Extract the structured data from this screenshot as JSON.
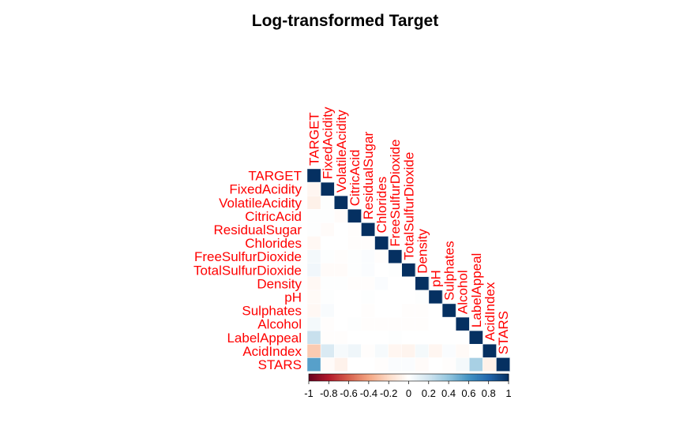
{
  "chart_data": {
    "type": "heatmap",
    "layout": "lower-triangular correlation matrix",
    "title": "Log-transformed Target",
    "variables": [
      "TARGET",
      "FixedAcidity",
      "VolatileAcidity",
      "CitricAcid",
      "ResidualSugar",
      "Chlorides",
      "FreeSulfurDioxide",
      "TotalSulfurDioxide",
      "Density",
      "pH",
      "Sulphates",
      "Alcohol",
      "LabelAppeal",
      "AcidIndex",
      "STARS"
    ],
    "matrix": [
      [
        1
      ],
      [
        -0.05,
        1
      ],
      [
        -0.08,
        0.01,
        1
      ],
      [
        0.01,
        0.01,
        -0.02,
        1
      ],
      [
        0.01,
        -0.02,
        0.0,
        -0.01,
        1
      ],
      [
        -0.04,
        0.0,
        0.0,
        -0.01,
        -0.01,
        1
      ],
      [
        0.05,
        0.01,
        -0.01,
        0.01,
        0.02,
        -0.01,
        1
      ],
      [
        0.06,
        -0.02,
        -0.02,
        0.01,
        0.02,
        0.0,
        0.01,
        1
      ],
      [
        -0.04,
        0.01,
        0.01,
        -0.01,
        -0.01,
        0.02,
        0.0,
        0.0,
        1
      ],
      [
        -0.03,
        0.01,
        0.0,
        0.0,
        0.01,
        0.0,
        0.0,
        0.0,
        0.01,
        1
      ],
      [
        -0.04,
        0.03,
        0.0,
        0.0,
        -0.01,
        0.0,
        0.0,
        -0.01,
        -0.01,
        0.0,
        1
      ],
      [
        0.05,
        -0.01,
        0.0,
        0.01,
        -0.01,
        -0.01,
        -0.01,
        -0.01,
        -0.01,
        0.0,
        0.0,
        1
      ],
      [
        0.23,
        -0.01,
        -0.01,
        0.0,
        0.0,
        0.0,
        0.01,
        0.0,
        0.0,
        0.0,
        0.0,
        0.0,
        1
      ],
      [
        -0.26,
        0.16,
        0.04,
        0.07,
        -0.01,
        0.04,
        -0.05,
        -0.06,
        0.05,
        -0.05,
        0.02,
        -0.03,
        0.0,
        1
      ],
      [
        0.55,
        -0.02,
        -0.07,
        0.0,
        0.0,
        -0.01,
        0.02,
        0.02,
        -0.02,
        0.0,
        -0.01,
        0.05,
        0.33,
        -0.08,
        1
      ]
    ],
    "colorbar": {
      "range": [
        -1,
        1
      ],
      "ticks": [
        -1,
        -0.8,
        -0.6,
        -0.4,
        -0.2,
        0,
        0.2,
        0.4,
        0.6,
        0.8,
        1
      ],
      "palette": [
        "#67001F",
        "#B2182B",
        "#D6604D",
        "#F4A582",
        "#FDDBC7",
        "#FFFFFF",
        "#D1E5F0",
        "#92C5DE",
        "#4393C3",
        "#2166AC",
        "#053061"
      ]
    },
    "label_color": "#FF0000"
  }
}
